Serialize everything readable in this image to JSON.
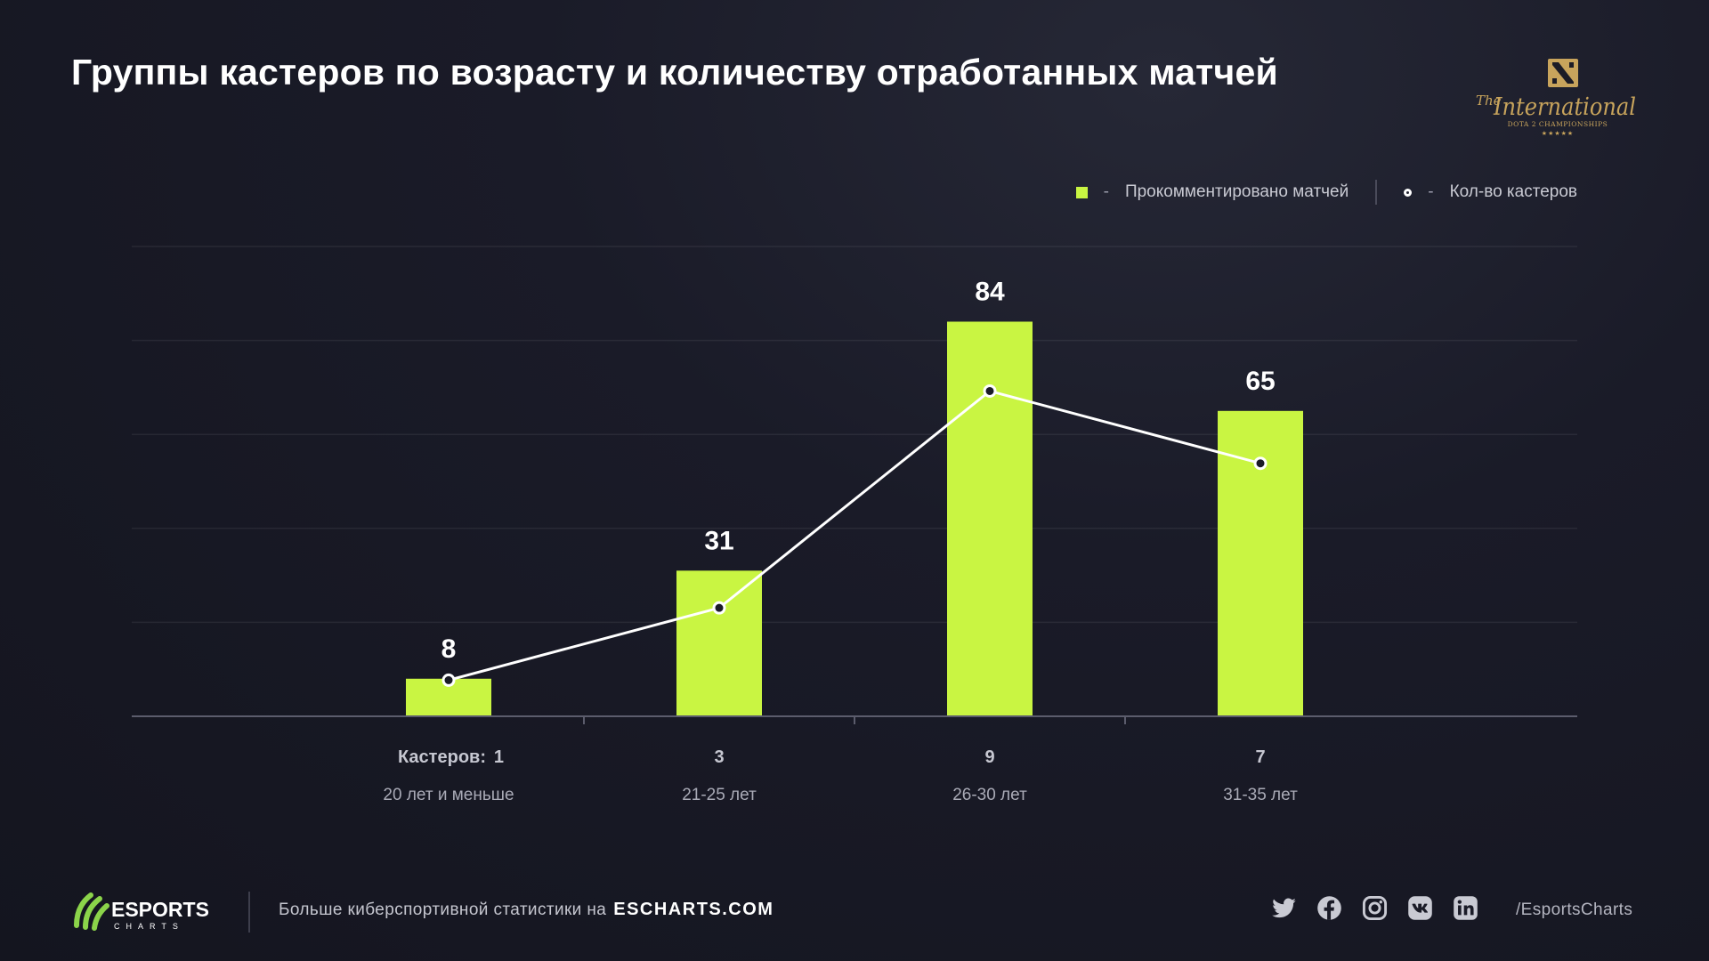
{
  "title": "Группы кастеров по возрасту и количеству отработанных матчей",
  "brand_logo": {
    "script_top": "The",
    "script_main": "International",
    "subtitle": "DOTA 2 CHAMPIONSHIPS",
    "stars": "★★★★★"
  },
  "colors": {
    "bar": "#c9f542",
    "line": "#ffffff",
    "background": "#171822",
    "accent": "#8bd44a"
  },
  "chart_data": {
    "type": "bar",
    "categories": [
      "20 лет и меньше",
      "21-25 лет",
      "26-30 лет",
      "31-35 лет"
    ],
    "series": [
      {
        "name": "Прокомментировано матчей",
        "type": "bar",
        "values": [
          8,
          31,
          84,
          65
        ]
      },
      {
        "name": "Кол-во кастеров",
        "type": "line",
        "values": [
          1,
          3,
          9,
          7
        ]
      }
    ],
    "secondary_label_prefix": "Кастеров:",
    "ylim": [
      0,
      100
    ],
    "line_ylim": [
      0,
      13
    ],
    "grid": true,
    "legend": "top-right",
    "legend_separator": "-"
  },
  "footer": {
    "logo_word": "ESPORTS",
    "logo_sub": "CHARTS",
    "text": "Больше киберспортивной статистики на",
    "site": "ESCHARTS.COM",
    "social_icons": [
      "twitter-icon",
      "facebook-icon",
      "instagram-icon",
      "vk-icon",
      "linkedin-icon"
    ],
    "handle": "/EsportsCharts"
  }
}
